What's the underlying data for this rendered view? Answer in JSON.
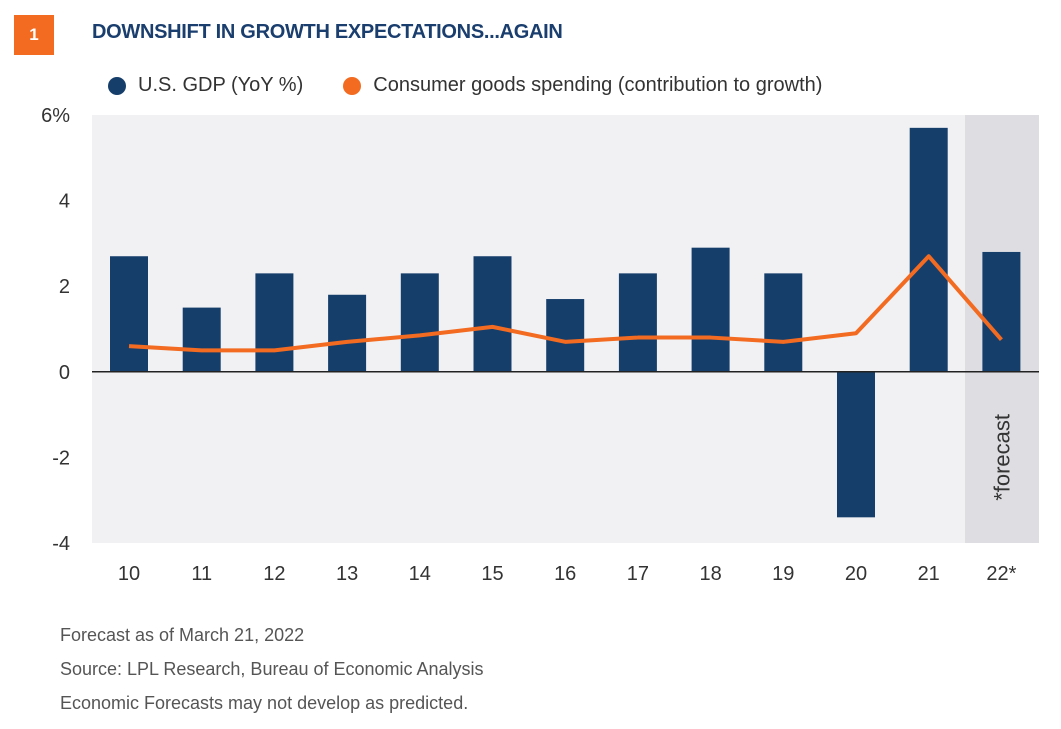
{
  "badge": "1",
  "title": "DOWNSHIFT IN GROWTH EXPECTATIONS...AGAIN",
  "legend": {
    "gdp": "U.S. GDP (YoY %)",
    "consumer": "Consumer goods spending (contribution to growth)"
  },
  "colors": {
    "bar": "#163e6b",
    "line": "#f26b21",
    "plot_bg": "#f1f1f3",
    "forecast_bg": "#dddde2",
    "badge": "#f26b21"
  },
  "forecast_label": "*forecast",
  "footnotes": [
    "Forecast as of March 21, 2022",
    "Source: LPL Research, Bureau of Economic Analysis",
    "Economic Forecasts may not develop as predicted."
  ],
  "chart_data": {
    "type": "bar",
    "categories": [
      "10",
      "11",
      "12",
      "13",
      "14",
      "15",
      "16",
      "17",
      "18",
      "19",
      "20",
      "21",
      "22*"
    ],
    "series": [
      {
        "name": "U.S. GDP (YoY %)",
        "type": "bar",
        "values": [
          2.7,
          1.5,
          2.3,
          1.8,
          2.3,
          2.7,
          1.7,
          2.3,
          2.9,
          2.3,
          -3.4,
          5.7,
          2.8
        ]
      },
      {
        "name": "Consumer goods spending (contribution to growth)",
        "type": "line",
        "values": [
          0.6,
          0.5,
          0.5,
          0.7,
          0.85,
          1.05,
          0.7,
          0.8,
          0.8,
          0.7,
          0.9,
          2.7,
          0.75
        ]
      }
    ],
    "ylim": [
      -4,
      6
    ],
    "yticks": [
      "-4",
      "-2",
      "0",
      "2",
      "4",
      "6%"
    ],
    "ytick_values": [
      -4,
      -2,
      0,
      2,
      4,
      6
    ],
    "forecast_categories": [
      "22*"
    ]
  }
}
